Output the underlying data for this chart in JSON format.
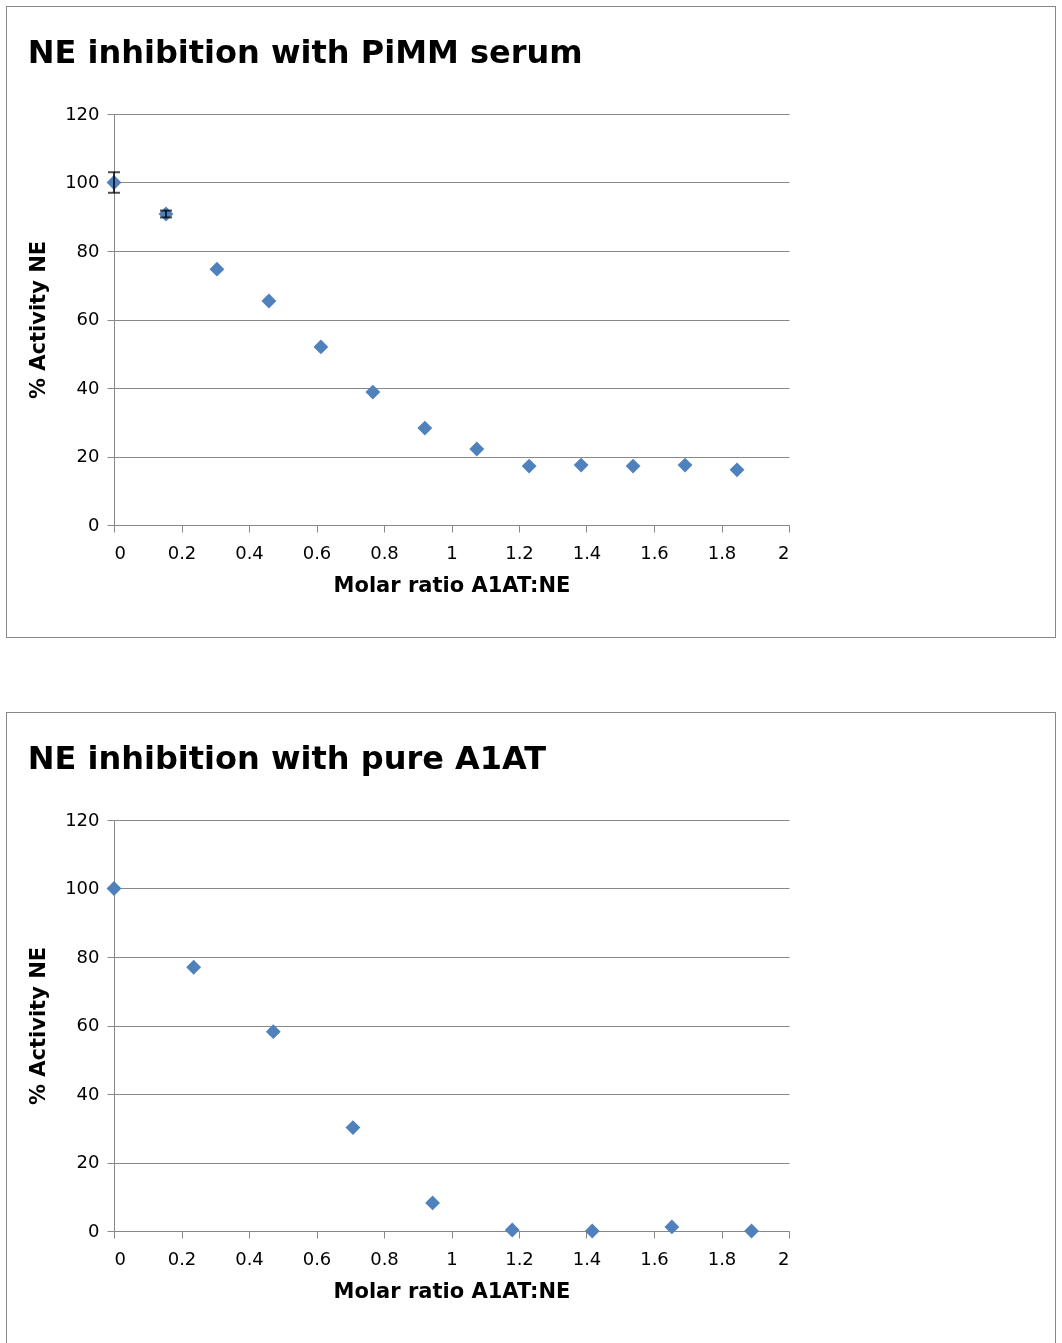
{
  "chart_data": [
    {
      "type": "scatter",
      "title": "NE inhibition with PiMM serum",
      "xlabel": "Molar ratio A1AT:NE",
      "ylabel": "% Activity NE",
      "x": [
        0,
        0.154,
        0.305,
        0.459,
        0.613,
        0.767,
        0.921,
        1.075,
        1.23,
        1.384,
        1.538,
        1.692,
        1.846
      ],
      "values": [
        100,
        90.8,
        74.7,
        65.4,
        52,
        38.8,
        28.3,
        22.2,
        17.2,
        17.5,
        17.2,
        17.5,
        16.1
      ],
      "errors": [
        3,
        1,
        null,
        null,
        null,
        null,
        null,
        null,
        null,
        null,
        null,
        null,
        null
      ],
      "color": "#4f81bd",
      "marker": "diamond",
      "grid": "y",
      "xlim": [
        0,
        2
      ],
      "xticks": [
        0,
        0.2,
        0.4,
        0.6,
        0.8,
        1,
        1.2,
        1.4,
        1.6,
        1.8,
        2
      ],
      "ylim": [
        0,
        120
      ],
      "yticks": [
        0,
        20,
        40,
        60,
        80,
        100,
        120
      ]
    },
    {
      "type": "scatter",
      "title": "NE inhibition with pure A1AT",
      "xlabel": "Molar ratio A1AT:NE",
      "ylabel": "% Activity NE",
      "x": [
        0,
        0.236,
        0.472,
        0.708,
        0.944,
        1.18,
        1.417,
        1.653,
        1.889
      ],
      "values": [
        100,
        77,
        58.2,
        30.2,
        8.2,
        0.3,
        0,
        1.2,
        0
      ],
      "color": "#4f81bd",
      "marker": "diamond",
      "grid": "y",
      "xlim": [
        0,
        2
      ],
      "xticks": [
        0,
        0.2,
        0.4,
        0.6,
        0.8,
        1,
        1.2,
        1.4,
        1.6,
        1.8,
        2
      ],
      "ylim": [
        0,
        120
      ],
      "yticks": [
        0,
        20,
        40,
        60,
        80,
        100,
        120
      ]
    }
  ]
}
